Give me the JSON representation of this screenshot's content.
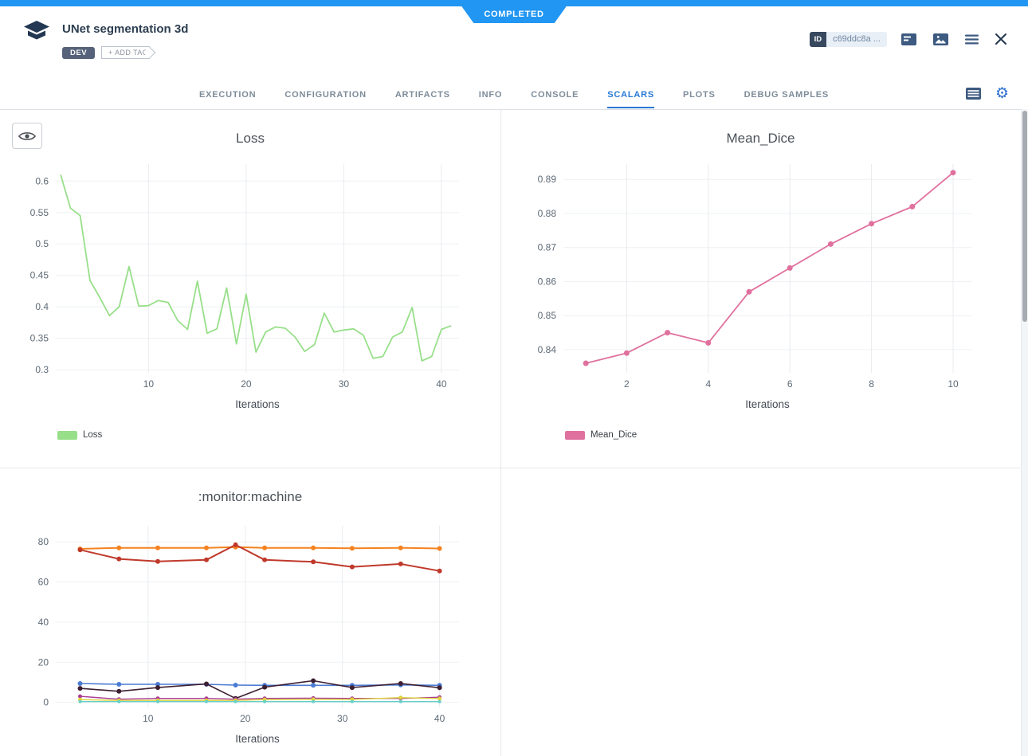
{
  "header": {
    "status": "COMPLETED",
    "title": "UNet segmentation 3d",
    "tags": [
      "DEV"
    ],
    "add_tag_label": "+ ADD TAG",
    "id_label": "ID",
    "id_value": "c69ddc8a ...",
    "icons": [
      "details-panel-icon",
      "image-view-icon",
      "menu-icon",
      "close-icon"
    ]
  },
  "tabs": {
    "items": [
      {
        "label": "EXECUTION",
        "active": false
      },
      {
        "label": "CONFIGURATION",
        "active": false
      },
      {
        "label": "ARTIFACTS",
        "active": false
      },
      {
        "label": "INFO",
        "active": false
      },
      {
        "label": "CONSOLE",
        "active": false
      },
      {
        "label": "SCALARS",
        "active": true
      },
      {
        "label": "PLOTS",
        "active": false
      },
      {
        "label": "DEBUG SAMPLES",
        "active": false
      }
    ],
    "right_icons": [
      "table-view-icon",
      "settings-gear-icon"
    ]
  },
  "toolbar": {
    "eye_icon": "eye-icon"
  },
  "colors": {
    "accent_blue": "#2196f3",
    "active_tab_blue": "#2878d4",
    "loss_series": "#98df8a",
    "mean_dice_series": "#e0719e",
    "panel_border": "#e4e7ea"
  },
  "chart_data": [
    {
      "type": "line",
      "title": "Loss",
      "xlabel": "Iterations",
      "xlim": [
        0.5,
        41.8
      ],
      "ylim": [
        0.295,
        0.627
      ],
      "xticks": [
        10,
        20,
        30,
        40
      ],
      "yticks": [
        0.3,
        0.35,
        0.4,
        0.45,
        0.5,
        0.55,
        0.6
      ],
      "grid": true,
      "legend": [
        {
          "label": "Loss",
          "color": "#98df8a"
        }
      ],
      "series": [
        {
          "name": "Loss",
          "color": "#98df8a",
          "markers": false,
          "width": 1.8,
          "x": [
            1,
            2,
            3,
            4,
            5,
            6,
            7,
            8,
            9,
            10,
            11,
            12,
            13,
            14,
            15,
            16,
            17,
            18,
            19,
            20,
            21,
            22,
            23,
            24,
            25,
            26,
            27,
            28,
            29,
            30,
            31,
            32,
            33,
            34,
            35,
            36,
            37,
            38,
            39,
            40,
            41
          ],
          "y": [
            0.61,
            0.557,
            0.545,
            0.442,
            0.415,
            0.386,
            0.4,
            0.464,
            0.401,
            0.402,
            0.41,
            0.407,
            0.378,
            0.364,
            0.441,
            0.358,
            0.365,
            0.43,
            0.341,
            0.42,
            0.328,
            0.36,
            0.368,
            0.366,
            0.352,
            0.329,
            0.34,
            0.39,
            0.36,
            0.363,
            0.365,
            0.355,
            0.318,
            0.321,
            0.352,
            0.36,
            0.399,
            0.314,
            0.321,
            0.364,
            0.37
          ]
        }
      ]
    },
    {
      "type": "line",
      "title": "Mean_Dice",
      "xlabel": "Iterations",
      "xlim": [
        0.45,
        10.45
      ],
      "ylim": [
        0.8332,
        0.8945
      ],
      "xticks": [
        2,
        4,
        6,
        8,
        10
      ],
      "yticks": [
        0.84,
        0.85,
        0.86,
        0.87,
        0.88,
        0.89
      ],
      "grid": true,
      "legend": [
        {
          "label": "Mean_Dice",
          "color": "#e0719e"
        }
      ],
      "series": [
        {
          "name": "Mean_Dice",
          "color": "#e0719e",
          "markers": true,
          "marker_size": 3.5,
          "width": 1.8,
          "x": [
            1,
            2,
            3,
            4,
            5,
            6,
            7,
            8,
            9,
            10
          ],
          "y": [
            0.836,
            0.839,
            0.845,
            0.842,
            0.857,
            0.864,
            0.871,
            0.877,
            0.882,
            0.892
          ]
        }
      ]
    },
    {
      "type": "line",
      "title": ":monitor:machine",
      "xlabel": "Iterations",
      "xlim": [
        0.5,
        42
      ],
      "ylim": [
        -2.5,
        88
      ],
      "xticks": [
        10,
        20,
        30,
        40
      ],
      "yticks": [
        0,
        20,
        40,
        60,
        80
      ],
      "grid": true,
      "legend": [],
      "series": [
        {
          "name": "series (orange)",
          "color": "#f58220",
          "markers": true,
          "marker_size": 3,
          "width": 2,
          "x": [
            3,
            7,
            11,
            16,
            19,
            22,
            27,
            31,
            36,
            40
          ],
          "y": [
            76.5,
            77.0,
            77.0,
            77.0,
            77.4,
            77.0,
            77.0,
            76.8,
            77.0,
            76.7
          ]
        },
        {
          "name": "series (red)",
          "color": "#c0392b",
          "markers": true,
          "marker_size": 3,
          "width": 2,
          "x": [
            3,
            7,
            11,
            16,
            19,
            22,
            27,
            31,
            36,
            40
          ],
          "y": [
            76.0,
            71.5,
            70.2,
            71.0,
            78.5,
            71.0,
            70.0,
            67.5,
            69.0,
            65.5
          ]
        },
        {
          "name": "series (blue)",
          "color": "#4b7bd3",
          "markers": true,
          "marker_size": 3,
          "width": 1.6,
          "x": [
            3,
            7,
            11,
            16,
            19,
            22,
            27,
            31,
            36,
            40
          ],
          "y": [
            9.4,
            9.0,
            9.0,
            9.0,
            8.6,
            8.5,
            8.5,
            8.5,
            8.7,
            8.5
          ]
        },
        {
          "name": "series (dark-plum)",
          "color": "#3c1f32",
          "markers": true,
          "marker_size": 3,
          "width": 1.6,
          "x": [
            3,
            7,
            11,
            16,
            19,
            22,
            27,
            31,
            36,
            40
          ],
          "y": [
            7.0,
            5.5,
            7.4,
            9.2,
            2.0,
            7.6,
            10.8,
            7.4,
            9.4,
            7.3
          ]
        },
        {
          "name": "series (magenta)",
          "color": "#aa3b93",
          "markers": true,
          "marker_size": 2.5,
          "width": 1.4,
          "x": [
            3,
            7,
            11,
            16,
            19,
            22,
            27,
            31,
            36,
            40
          ],
          "y": [
            3.0,
            1.6,
            2.0,
            2.0,
            1.6,
            2.0,
            2.1,
            2.0,
            2.0,
            2.6
          ]
        },
        {
          "name": "series (yellow)",
          "color": "#ded33d",
          "markers": true,
          "marker_size": 2.5,
          "width": 1.4,
          "x": [
            3,
            7,
            11,
            16,
            19,
            22,
            27,
            31,
            36,
            40
          ],
          "y": [
            1.4,
            1.0,
            1.0,
            1.0,
            1.0,
            1.4,
            1.5,
            1.5,
            2.4,
            1.9
          ]
        },
        {
          "name": "series (cyan)",
          "color": "#66cfca",
          "markers": true,
          "marker_size": 2,
          "width": 1.4,
          "x": [
            3,
            7,
            11,
            16,
            19,
            22,
            27,
            31,
            36,
            40
          ],
          "y": [
            0.4,
            0.4,
            0.4,
            0.4,
            0.4,
            0.4,
            0.4,
            0.4,
            0.4,
            0.4
          ]
        }
      ]
    }
  ]
}
